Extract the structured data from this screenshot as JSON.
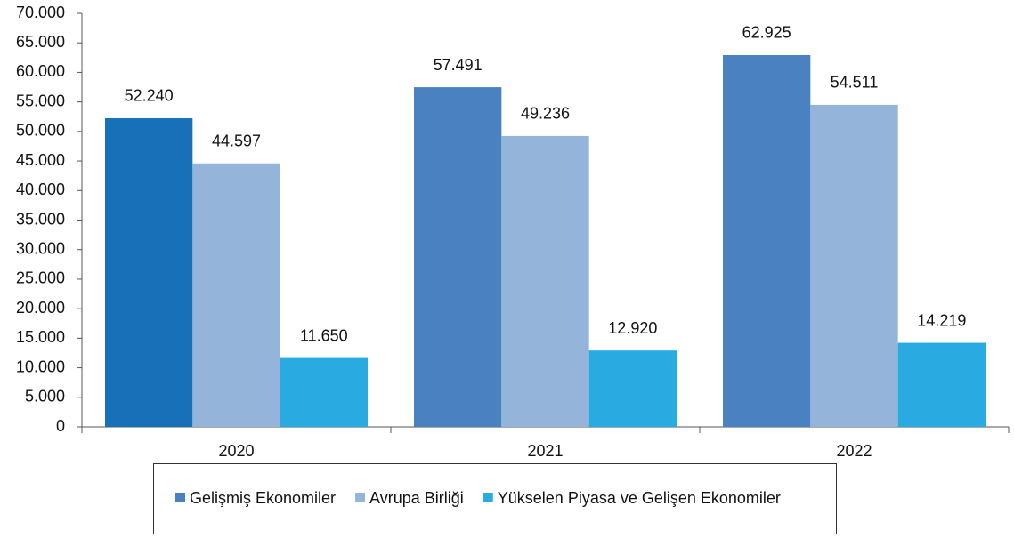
{
  "chart_data": {
    "type": "bar",
    "categories": [
      "2020",
      "2021",
      "2022"
    ],
    "series": [
      {
        "name": "Gelişmiş Ekonomiler",
        "color": "#4a82c1",
        "colors": [
          "#1770b8",
          "#4a82c1",
          "#4a82c1"
        ],
        "values": [
          52240,
          57491,
          62925
        ],
        "value_labels": [
          "52.240",
          "57.491",
          "62.925"
        ]
      },
      {
        "name": "Avrupa Birliği",
        "color": "#95b4da",
        "values": [
          44597,
          49236,
          54511
        ],
        "value_labels": [
          "44.597",
          "49.236",
          "54.511"
        ]
      },
      {
        "name": "Yükselen Piyasa ve Gelişen Ekonomiler",
        "color": "#29abe2",
        "values": [
          11650,
          12920,
          14219
        ],
        "value_labels": [
          "11.650",
          "12.920",
          "14.219"
        ]
      }
    ],
    "ylim": [
      0,
      70000
    ],
    "yticks": [
      0,
      {
        "value": 5000,
        "label": "5.000"
      },
      {
        "value": 10000,
        "label": "10.000"
      },
      {
        "value": 15000,
        "label": "15.000"
      },
      {
        "value": 20000,
        "label": "20.000"
      },
      {
        "value": 25000,
        "label": "25.000"
      },
      {
        "value": 30000,
        "label": "30.000"
      },
      {
        "value": 35000,
        "label": "35.000"
      },
      {
        "value": 40000,
        "label": "40.000"
      },
      {
        "value": 45000,
        "label": "45.000"
      },
      {
        "value": 50000,
        "label": "50.000"
      },
      {
        "value": 55000,
        "label": "55.000"
      },
      {
        "value": 60000,
        "label": "60.000"
      },
      {
        "value": 65000,
        "label": "65.000"
      },
      {
        "value": 70000,
        "label": "70.000"
      }
    ],
    "legend": "bottom"
  }
}
